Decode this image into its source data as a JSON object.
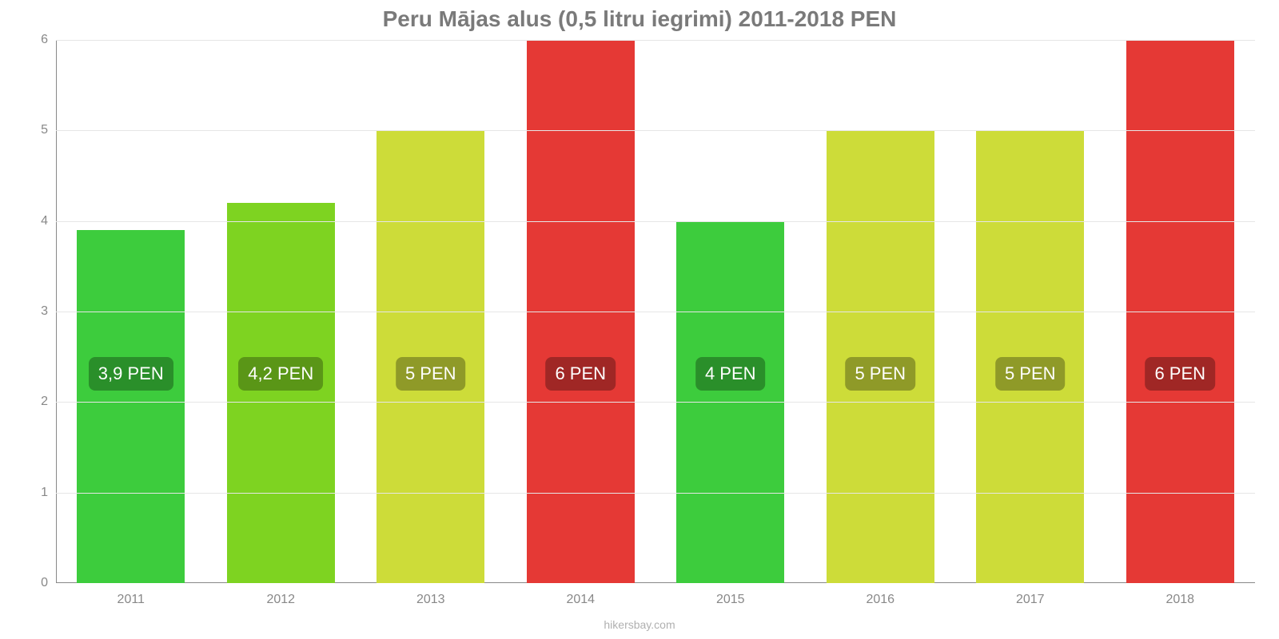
{
  "chart": {
    "type": "bar",
    "title": "Peru Mājas alus (0,5 litru iegrimi) 2011-2018 PEN",
    "title_fontsize": 28,
    "title_color": "#7a7a7a",
    "background_color": "#ffffff",
    "grid_color": "#e6e6e6",
    "axis_color": "#888888",
    "label_color": "#888888",
    "label_fontsize": 16,
    "bar_label_fontsize": 22,
    "bar_label_text_color": "#ffffff",
    "bar_label_border_radius": 8,
    "ylim": [
      0,
      6
    ],
    "yticks": [
      0,
      1,
      2,
      3,
      4,
      5,
      6
    ],
    "categories": [
      "2011",
      "2012",
      "2013",
      "2014",
      "2015",
      "2016",
      "2017",
      "2018"
    ],
    "values": [
      3.9,
      4.2,
      5,
      6,
      4,
      5,
      5,
      6
    ],
    "value_labels": [
      "3,9 PEN",
      "4,2 PEN",
      "5 PEN",
      "6 PEN",
      "4 PEN",
      "5 PEN",
      "5 PEN",
      "6 PEN"
    ],
    "bar_colors": [
      "#3dcc3d",
      "#7ed321",
      "#cddc39",
      "#e53935",
      "#3dcc3d",
      "#cddc39",
      "#cddc39",
      "#e53935"
    ],
    "bar_label_bg_colors": [
      "#2a8f2a",
      "#5a9617",
      "#8f9a28",
      "#a02725",
      "#2a8f2a",
      "#8f9a28",
      "#8f9a28",
      "#a02725"
    ],
    "bar_width_ratio": 0.72,
    "footer": "hikersbay.com"
  }
}
